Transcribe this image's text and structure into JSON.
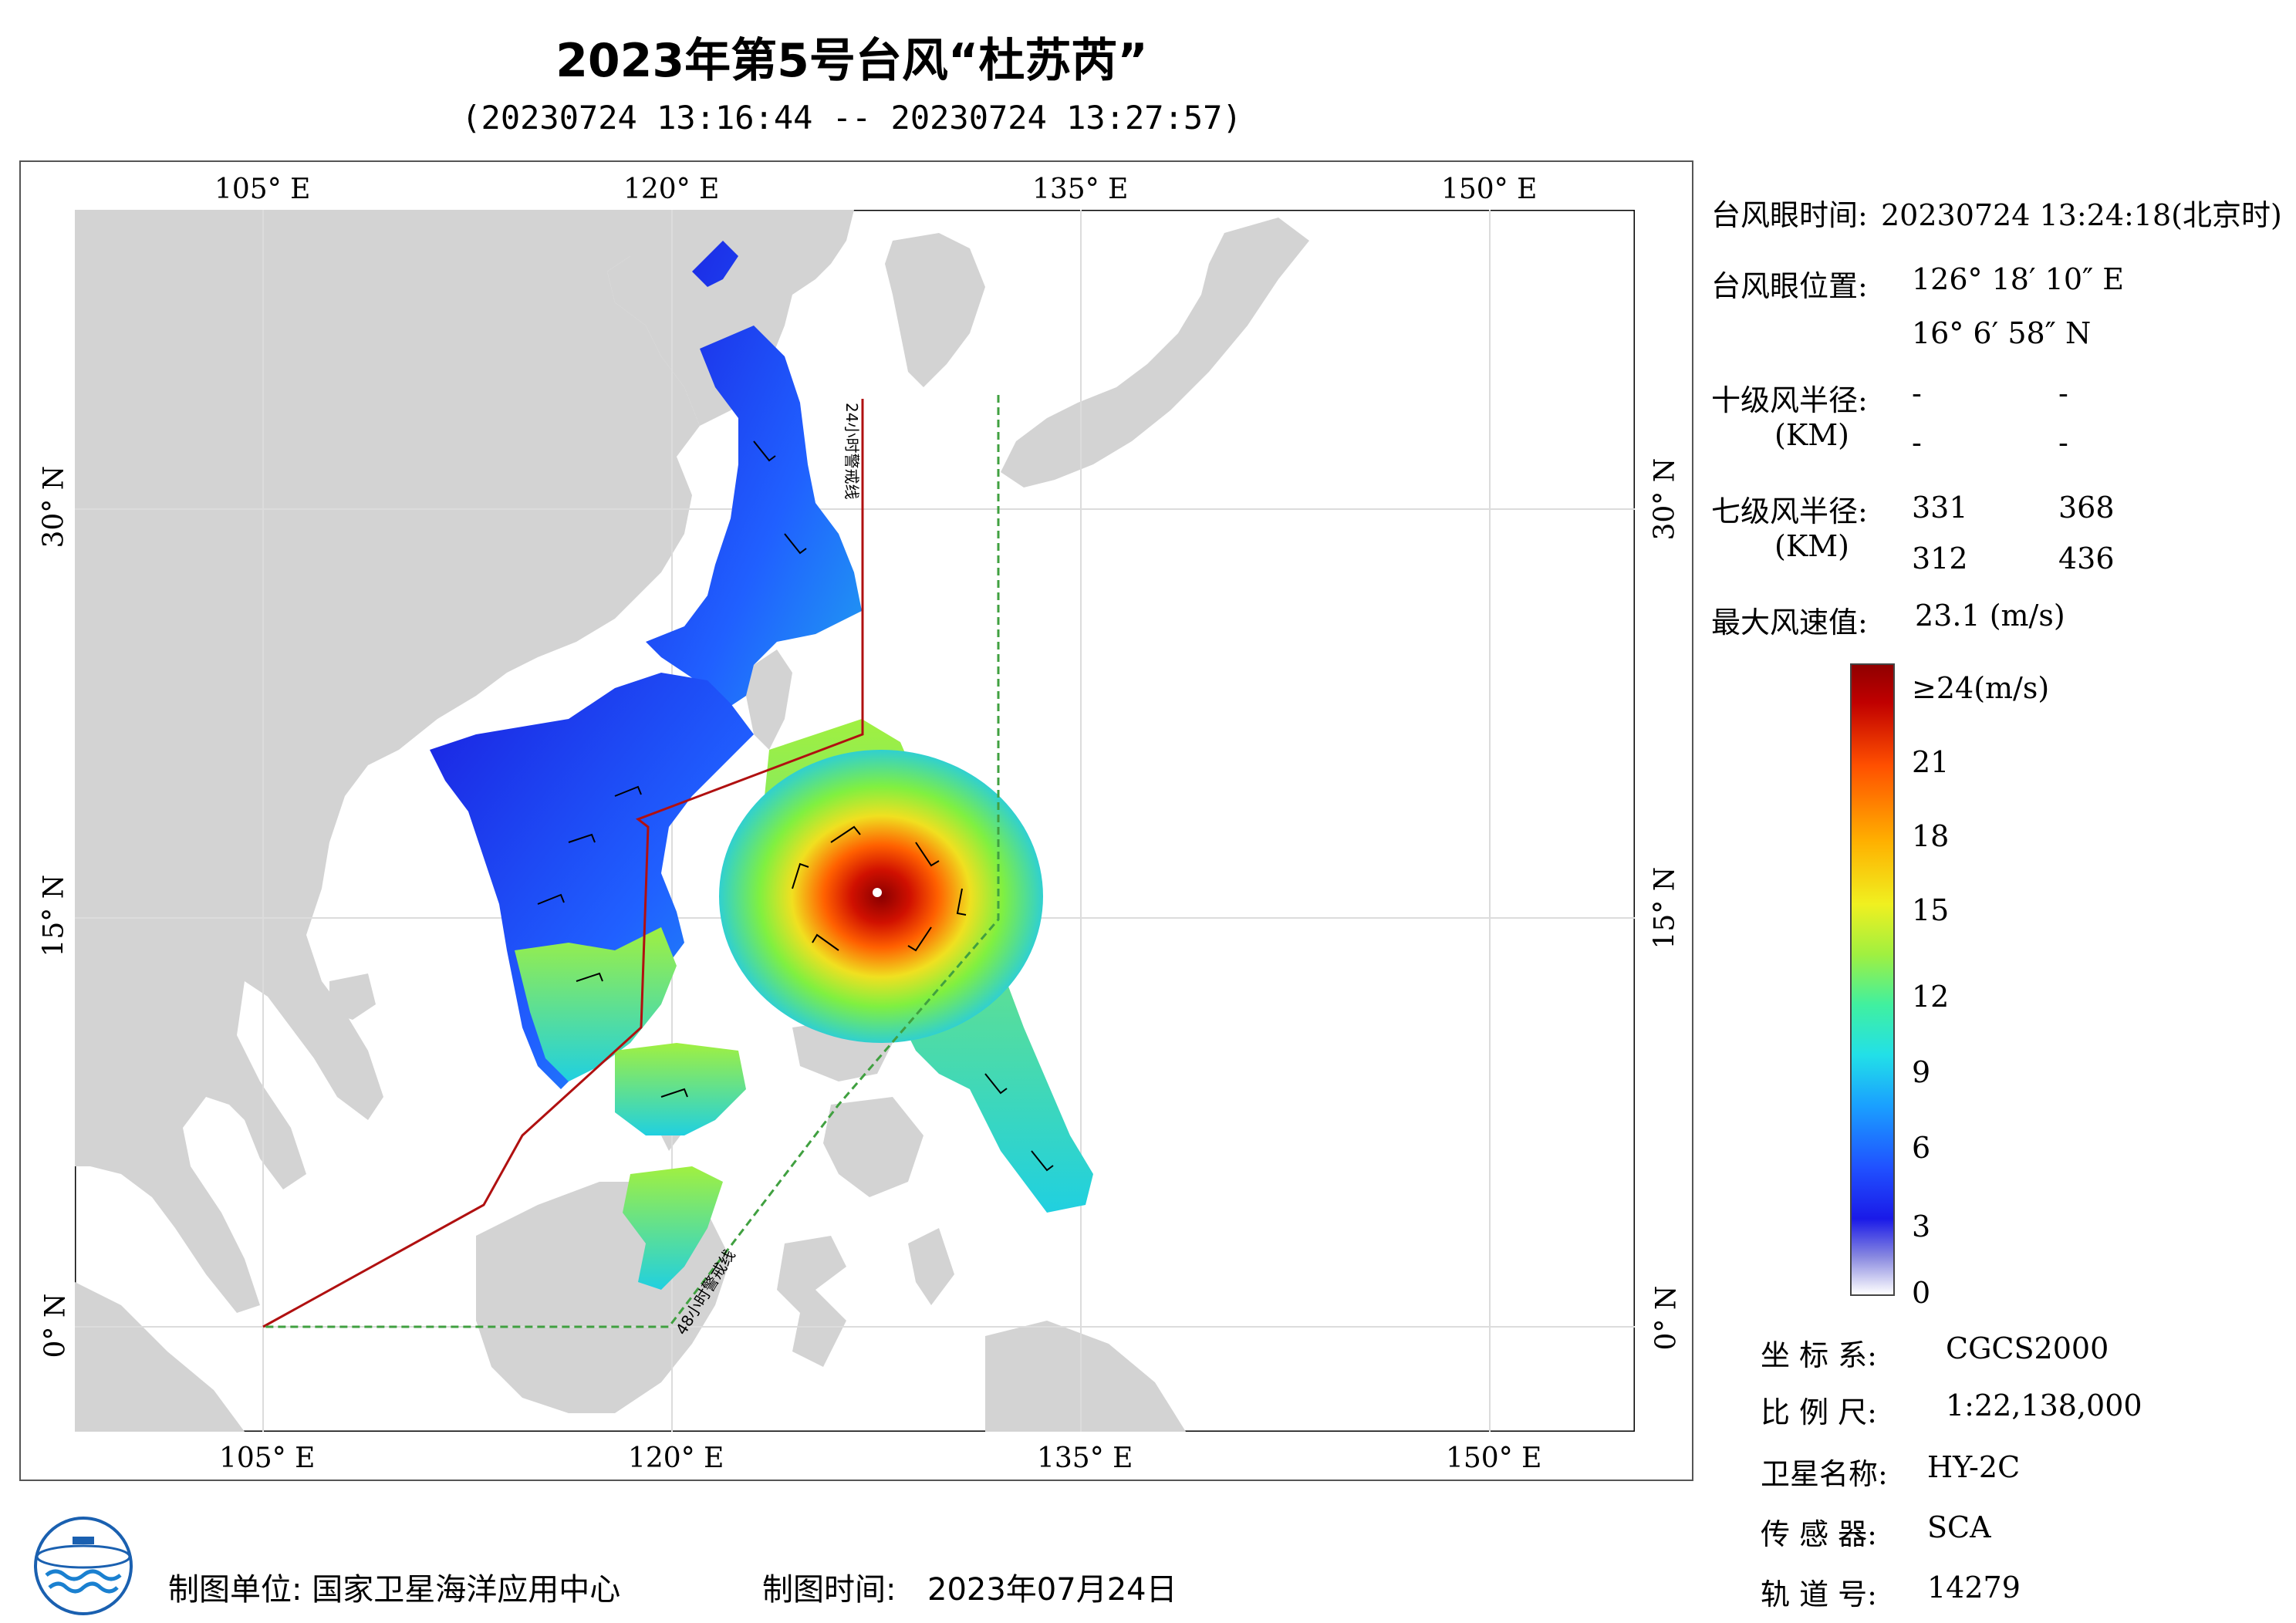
{
  "title": "2023年第5号台风“杜苏芮”",
  "subtitle": "(20230724 13:16:44 -- 20230724 13:27:57)",
  "map": {
    "lon_labels": [
      "105° E",
      "120° E",
      "135° E",
      "150° E"
    ],
    "lat_labels": [
      "30° N",
      "15° N",
      "0° N"
    ],
    "warning_24h": "24小时警戒线",
    "warning_48h": "48小时警戒线",
    "colors": {
      "land": "#d3d3d3",
      "sea": "#ffffff",
      "warning_24h": "#b01010",
      "warning_48h": "#40a040"
    }
  },
  "info": {
    "eye_time_label": "台风眼时间:",
    "eye_time_value": "20230724 13:24:18(北京时)",
    "eye_pos_label": "台风眼位置:",
    "eye_lon": "126° 18′ 10″ E",
    "eye_lat": "16° 6′ 58″ N",
    "r10_label": "十级风半径:",
    "r10_unit": "(KM)",
    "r10_values": [
      "-",
      "-",
      "-",
      "-"
    ],
    "r7_label": "七级风半径:",
    "r7_unit": "(KM)",
    "r7_values": [
      "331",
      "368",
      "312",
      "436"
    ],
    "max_wind_label": "最大风速值:",
    "max_wind_value": "23.1 (m/s)"
  },
  "colorbar": {
    "labels": [
      "≥24(m/s)",
      "21",
      "18",
      "15",
      "12",
      "9",
      "6",
      "3",
      "0"
    ]
  },
  "meta": {
    "crs_label": "坐 标 系:",
    "crs_value": "CGCS2000",
    "scale_label": "比 例 尺:",
    "scale_value": "1:22,138,000",
    "sat_label": "卫星名称:",
    "sat_value": "HY-2C",
    "sensor_label": "传 感 器:",
    "sensor_value": "SCA",
    "orbit_label": "轨 道 号:",
    "orbit_value": "14279"
  },
  "footer": {
    "unit": "制图单位: 国家卫星海洋应用中心",
    "time_label": "制图时间:",
    "time_value": "2023年07月24日"
  }
}
